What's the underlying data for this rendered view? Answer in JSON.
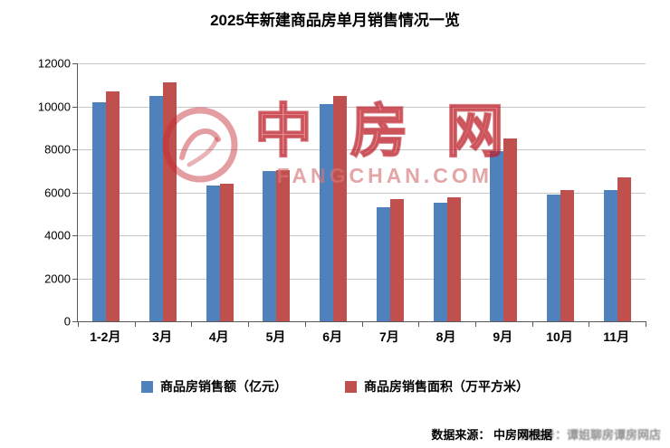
{
  "title": "2025年新建商品房单月销售情况一览",
  "watermark": {
    "main": "中 房 网",
    "sub": "FANGCHAN.COM",
    "color": "#C42830"
  },
  "footer": {
    "source": "数据来源： 中房网根据",
    "overlay": "微信号：谭姐聊房谭房网店"
  },
  "colors": {
    "sales_amount": "#4F81BD",
    "sales_area": "#C0504D",
    "gridline": "#C6C6C6",
    "axis": "#595959"
  },
  "chart_data": {
    "type": "bar",
    "title": "2025年新建商品房单月销售情况一览",
    "categories": [
      "1-2月",
      "3月",
      "4月",
      "5月",
      "6月",
      "7月",
      "8月",
      "9月",
      "10月",
      "11月"
    ],
    "series": [
      {
        "id": "sales-amount",
        "name": "商品房销售额（亿元）",
        "color": "#4F81BD",
        "values": [
          10200,
          10500,
          6300,
          7000,
          10100,
          5300,
          5500,
          7900,
          5900,
          6100
        ]
      },
      {
        "id": "sales-area",
        "name": "商品房销售面积（万平方米）",
        "color": "#C0504D",
        "values": [
          10700,
          11100,
          6400,
          7050,
          10500,
          5700,
          5750,
          8500,
          6100,
          6700
        ]
      }
    ],
    "xlabel": "",
    "ylabel": "",
    "ylim": [
      0,
      12000
    ],
    "ytick_step": 2000,
    "grid": true,
    "legend_position": "bottom"
  }
}
